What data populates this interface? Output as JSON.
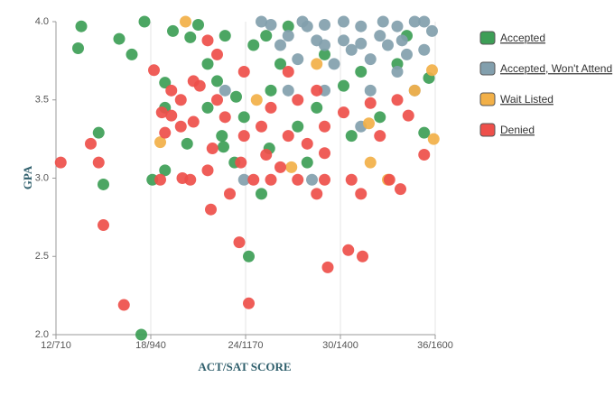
{
  "chart_data": {
    "type": "scatter",
    "xlabel": "ACT/SAT SCORE",
    "ylabel": "GPA",
    "xlim": [
      12,
      36
    ],
    "ylim": [
      2,
      4
    ],
    "xticks": [
      {
        "value": 12,
        "label": "12/710"
      },
      {
        "value": 18,
        "label": "18/940"
      },
      {
        "value": 24,
        "label": "24/1170"
      },
      {
        "value": 30,
        "label": "30/1400"
      },
      {
        "value": 36,
        "label": "36/1600"
      }
    ],
    "yticks": [
      {
        "value": 2,
        "label": "2.0"
      },
      2.5,
      {
        "value": 3,
        "label": "3.0"
      },
      3.5,
      {
        "value": 4,
        "label": "4.0"
      }
    ],
    "grid": "x",
    "legend": "right",
    "series": [
      {
        "name": "Accepted",
        "color": "#3d9e56",
        "x": [
          13.6,
          13.4,
          16.0,
          17.6,
          16.8,
          14.7,
          15.0,
          18.9,
          18.9,
          19.4,
          20.5,
          20.3,
          18.9,
          18.1,
          17.4,
          24.2,
          25.0,
          22.6,
          23.4,
          25.5,
          27.9,
          35.3,
          35.6,
          21.6,
          22.7,
          24.5,
          26.7,
          29.0,
          31.3,
          32.5,
          33.6,
          25.6,
          23.9,
          28.5,
          22.2,
          26.2,
          30.2,
          27.3,
          23.3,
          21.6,
          34.2,
          30.7,
          22.5,
          25.3,
          21.0
        ],
        "values": [
          3.97,
          3.83,
          3.89,
          4.0,
          3.79,
          3.29,
          2.96,
          3.45,
          3.61,
          3.94,
          3.9,
          3.22,
          3.05,
          2.99,
          2.0,
          2.5,
          2.9,
          3.2,
          3.52,
          3.19,
          3.1,
          3.29,
          3.64,
          3.73,
          3.91,
          3.85,
          3.97,
          3.79,
          3.68,
          3.39,
          3.73,
          3.56,
          3.39,
          3.45,
          3.62,
          3.73,
          3.59,
          3.33,
          3.1,
          3.45,
          3.91,
          3.27,
          3.27,
          3.91,
          3.98
        ]
      },
      {
        "name": "Accepted, Won't Attend",
        "color": "#829fad",
        "x": [
          26.7,
          27.9,
          29.0,
          30.2,
          31.3,
          32.5,
          33.6,
          34.7,
          35.8,
          35.3,
          34.2,
          33.0,
          31.9,
          30.7,
          29.6,
          28.5,
          27.3,
          25.6,
          26.2,
          29.0,
          31.9,
          33.6,
          31.3,
          28.2,
          23.9,
          22.7,
          26.7,
          34.7,
          25.0,
          35.3,
          32.7,
          30.2,
          27.6,
          33.9,
          31.3,
          29.0
        ],
        "values": [
          3.91,
          3.97,
          3.98,
          3.88,
          3.97,
          3.91,
          3.97,
          4.0,
          3.94,
          3.82,
          3.79,
          3.85,
          3.76,
          3.82,
          3.73,
          3.88,
          3.76,
          3.98,
          3.85,
          3.56,
          3.56,
          3.68,
          3.33,
          2.99,
          2.99,
          3.56,
          3.56,
          3.56,
          4.0,
          4.0,
          4.0,
          4.0,
          4.0,
          3.88,
          3.86,
          3.85
        ]
      },
      {
        "name": "Wait Listed",
        "color": "#f2b048",
        "x": [
          20.2,
          18.6,
          26.9,
          31.9,
          33.0,
          35.9,
          35.8,
          34.7,
          31.8,
          24.7,
          28.5
        ],
        "values": [
          4.0,
          3.23,
          3.07,
          3.1,
          2.99,
          3.25,
          3.69,
          3.56,
          3.35,
          3.5,
          3.73
        ]
      },
      {
        "name": "Denied",
        "color": "#ee4f4a",
        "x": [
          12.3,
          14.2,
          14.7,
          15.0,
          16.3,
          18.2,
          18.7,
          19.3,
          18.9,
          18.6,
          20.0,
          20.5,
          19.9,
          20.7,
          21.1,
          21.6,
          21.8,
          23.6,
          24.2,
          23.0,
          25.3,
          26.2,
          27.3,
          28.5,
          29.2,
          30.5,
          31.4,
          31.3,
          30.7,
          33.1,
          33.8,
          35.3,
          34.3,
          32.5,
          29.0,
          27.9,
          26.7,
          25.0,
          23.9,
          22.7,
          22.2,
          21.6,
          22.2,
          23.9,
          25.6,
          27.3,
          29.0,
          30.2,
          31.9,
          33.6,
          21.9,
          20.7,
          19.9,
          19.3,
          24.5,
          25.6,
          29.0,
          23.7,
          26.7,
          28.5
        ],
        "values": [
          3.1,
          3.22,
          3.1,
          2.7,
          2.19,
          3.69,
          3.42,
          3.4,
          3.29,
          2.99,
          3.0,
          2.99,
          3.5,
          3.62,
          3.59,
          3.05,
          2.8,
          2.59,
          2.2,
          2.9,
          3.15,
          3.07,
          2.99,
          2.9,
          2.43,
          2.54,
          2.5,
          2.9,
          2.99,
          2.99,
          2.93,
          3.15,
          3.4,
          3.27,
          3.33,
          3.22,
          3.27,
          3.33,
          3.27,
          3.39,
          3.5,
          3.88,
          3.79,
          3.68,
          3.45,
          3.5,
          3.16,
          3.42,
          3.48,
          3.5,
          3.19,
          3.36,
          3.33,
          3.56,
          2.99,
          2.99,
          2.99,
          3.1,
          3.68,
          3.56
        ]
      }
    ]
  }
}
